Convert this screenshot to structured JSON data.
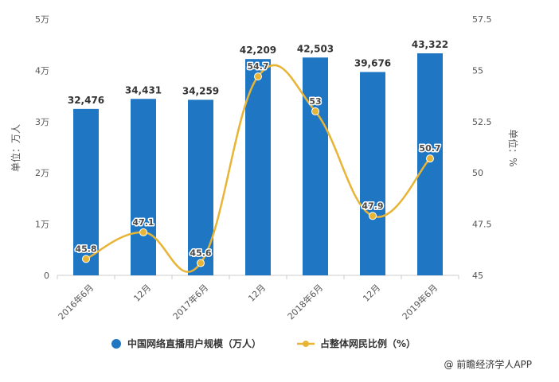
{
  "chart_data": {
    "type": "bar+line",
    "categories": [
      "2016年6月",
      "12月",
      "2017年6月",
      "12月",
      "2018年6月",
      "12月",
      "2019年6月"
    ],
    "series": [
      {
        "name": "中国网络直播用户规模（万人）",
        "type": "bar",
        "axis": "left",
        "values": [
          32476,
          34431,
          34259,
          42209,
          42503,
          39676,
          43322
        ],
        "labels": [
          "32,476",
          "34,431",
          "34,259",
          "42,209",
          "42,503",
          "39,676",
          "43,322"
        ],
        "color": "#1f77c4"
      },
      {
        "name": "占整体网民比例（%）",
        "type": "line",
        "axis": "right",
        "values": [
          45.8,
          47.1,
          45.6,
          54.7,
          53,
          47.9,
          50.7
        ],
        "labels": [
          "45.8",
          "47.1",
          "45.6",
          "54.7",
          "53",
          "47.9",
          "50.7"
        ],
        "color": "#e8b436"
      }
    ],
    "y_left": {
      "label": "单位：万人",
      "range": [
        0,
        50000
      ],
      "ticks": [
        0,
        10000,
        20000,
        30000,
        40000,
        50000
      ],
      "tick_labels": [
        "0",
        "1万",
        "2万",
        "3万",
        "4万",
        "5万"
      ]
    },
    "y_right": {
      "label": "单位：%",
      "range": [
        45,
        57.5
      ],
      "ticks": [
        45,
        47.5,
        50,
        52.5,
        55,
        57.5
      ],
      "tick_labels": [
        "45",
        "47.5",
        "50",
        "52.5",
        "55",
        "57.5"
      ]
    },
    "grid": false,
    "legend": "bottom",
    "source": "@ 前瞻经济学人APP"
  }
}
